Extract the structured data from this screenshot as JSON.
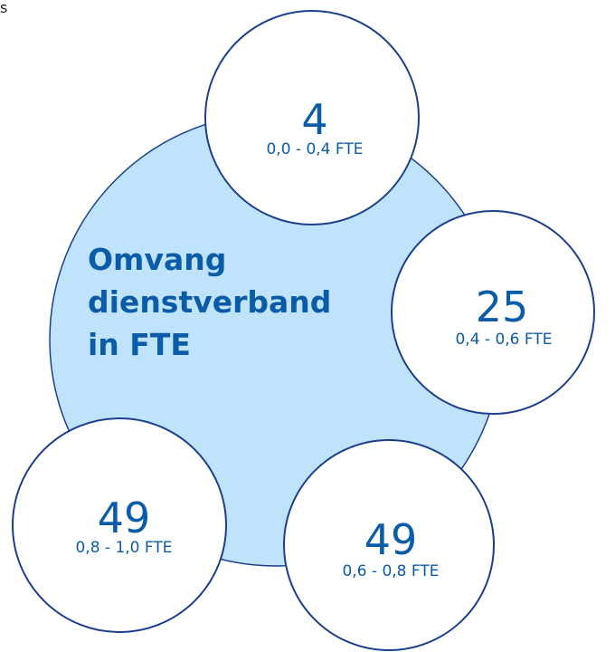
{
  "corner_text": "s",
  "title_lines": [
    "Omvang",
    "dienstverband",
    "in FTE"
  ],
  "items": [
    {
      "value": 4,
      "label": "0,0 - 0,4 FTE"
    },
    {
      "value": 25,
      "label": "0,4 - 0,6 FTE"
    },
    {
      "value": 49,
      "label": "0,6 - 0,8 FTE"
    },
    {
      "value": 49,
      "label": "0,8 - 1,0 FTE"
    }
  ]
}
